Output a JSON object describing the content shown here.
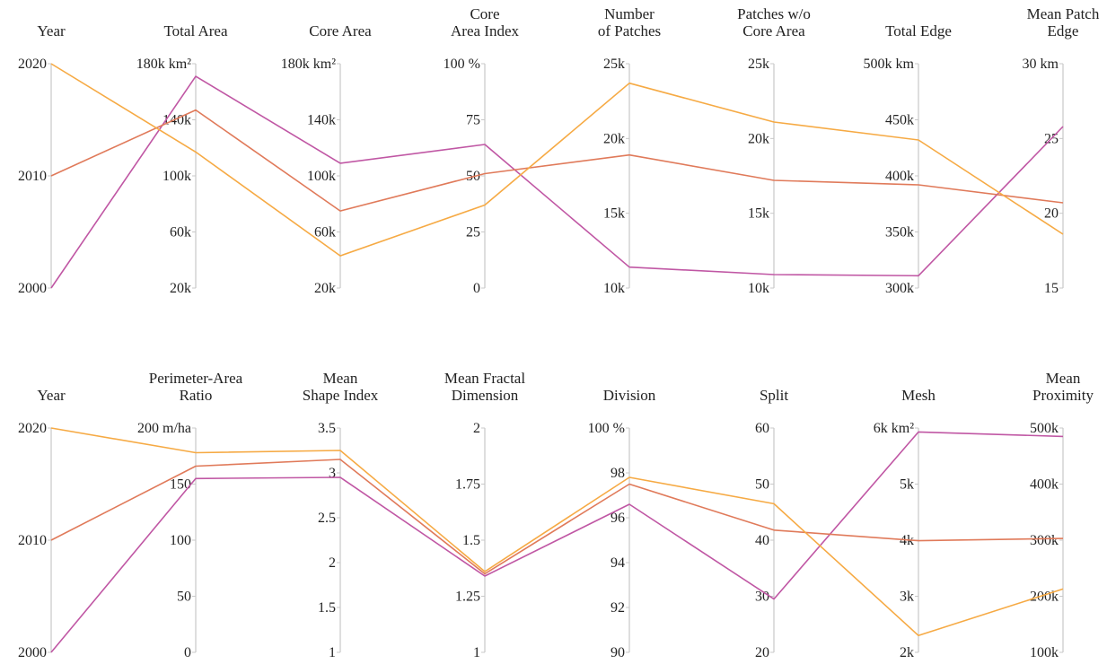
{
  "colors": {
    "2000": "#c057a4",
    "2010": "#e07a5a",
    "2020": "#f6aa44",
    "axis": "#c8c8c8"
  },
  "chart_data": [
    {
      "type": "parallel-coordinates",
      "axes": [
        {
          "key": "year",
          "title": [
            "Year"
          ],
          "range": [
            2000,
            2020
          ],
          "ticks": [
            "2000",
            "2010",
            "2020"
          ]
        },
        {
          "key": "total_area",
          "title": [
            "Total Area"
          ],
          "range": [
            20,
            180
          ],
          "ticks": [
            "20k",
            "60k",
            "100k",
            "140k",
            "180k km²"
          ]
        },
        {
          "key": "core_area",
          "title": [
            "Core Area"
          ],
          "range": [
            20,
            180
          ],
          "ticks": [
            "20k",
            "60k",
            "100k",
            "140k",
            "180k km²"
          ]
        },
        {
          "key": "core_area_index",
          "title": [
            "Core",
            "Area Index"
          ],
          "range": [
            0,
            100
          ],
          "ticks": [
            "0",
            "25",
            "50",
            "75",
            "100 %"
          ]
        },
        {
          "key": "number_of_patches",
          "title": [
            "Number",
            "of Patches"
          ],
          "range": [
            10,
            25
          ],
          "ticks": [
            "10k",
            "15k",
            "20k",
            "25k"
          ]
        },
        {
          "key": "patches_wo_core",
          "title": [
            "Patches w/o",
            "Core Area"
          ],
          "range": [
            10,
            25
          ],
          "ticks": [
            "10k",
            "15k",
            "20k",
            "25k"
          ]
        },
        {
          "key": "total_edge",
          "title": [
            "Total Edge"
          ],
          "range": [
            300,
            500
          ],
          "ticks": [
            "300k",
            "350k",
            "400k",
            "450k",
            "500k km"
          ]
        },
        {
          "key": "mean_patch_edge",
          "title": [
            "Mean Patch",
            "Edge"
          ],
          "range": [
            15,
            30
          ],
          "ticks": [
            "15",
            "20",
            "25",
            "30 km"
          ]
        }
      ],
      "series": [
        {
          "name": "2000",
          "values": [
            2000,
            171,
            109,
            64,
            11.4,
            10.9,
            311,
            25.8
          ]
        },
        {
          "name": "2010",
          "values": [
            2010,
            147,
            75,
            51,
            18.9,
            17.2,
            392,
            20.7
          ]
        },
        {
          "name": "2020",
          "values": [
            2020,
            117,
            43,
            37,
            23.7,
            21.1,
            432,
            18.6
          ]
        }
      ]
    },
    {
      "type": "parallel-coordinates",
      "axes": [
        {
          "key": "year",
          "title": [
            "Year"
          ],
          "range": [
            2000,
            2020
          ],
          "ticks": [
            "2000",
            "2010",
            "2020"
          ]
        },
        {
          "key": "perimeter_area_ratio",
          "title": [
            "Perimeter-Area",
            "Ratio"
          ],
          "range": [
            0,
            200
          ],
          "ticks": [
            "0",
            "50",
            "100",
            "150",
            "200 m/ha"
          ]
        },
        {
          "key": "mean_shape_index",
          "title": [
            "Mean",
            "Shape Index"
          ],
          "range": [
            1,
            3.5
          ],
          "ticks": [
            "1",
            "1.5",
            "2",
            "2.5",
            "3",
            "3.5"
          ]
        },
        {
          "key": "mean_fractal_dimension",
          "title": [
            "Mean Fractal",
            "Dimension"
          ],
          "range": [
            1,
            2
          ],
          "ticks": [
            "1",
            "1.25",
            "1.5",
            "1.75",
            "2"
          ]
        },
        {
          "key": "division",
          "title": [
            "Division"
          ],
          "range": [
            90,
            100
          ],
          "ticks": [
            "90",
            "92",
            "94",
            "96",
            "98",
            "100 %"
          ]
        },
        {
          "key": "split",
          "title": [
            "Split"
          ],
          "range": [
            20,
            60
          ],
          "ticks": [
            "20",
            "30",
            "40",
            "50",
            "60"
          ]
        },
        {
          "key": "mesh",
          "title": [
            "Mesh"
          ],
          "range": [
            2,
            6
          ],
          "ticks": [
            "2k",
            "3k",
            "4k",
            "5k",
            "6k km²"
          ]
        },
        {
          "key": "mean_proximity",
          "title": [
            "Mean",
            "Proximity"
          ],
          "range": [
            100,
            500
          ],
          "ticks": [
            "100k",
            "200k",
            "300k",
            "400k",
            "500k"
          ]
        }
      ],
      "series": [
        {
          "name": "2000",
          "values": [
            2000,
            155,
            2.95,
            1.34,
            96.6,
            29.5,
            5.93,
            485
          ]
        },
        {
          "name": "2010",
          "values": [
            2010,
            166,
            3.15,
            1.35,
            97.5,
            41.8,
            3.99,
            303
          ]
        },
        {
          "name": "2020",
          "values": [
            2020,
            178,
            3.25,
            1.36,
            97.8,
            46.5,
            2.3,
            213
          ]
        }
      ]
    }
  ]
}
